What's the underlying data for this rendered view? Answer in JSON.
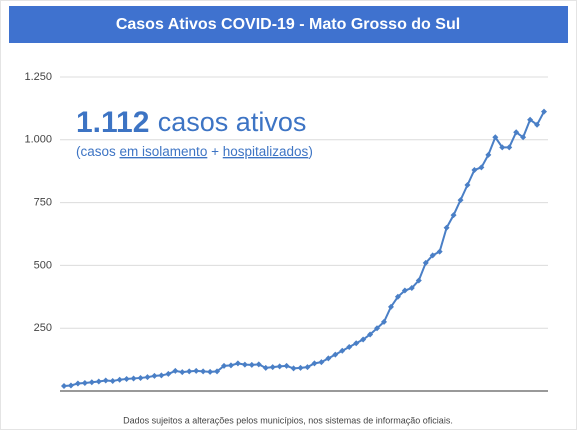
{
  "chart_data": {
    "type": "line",
    "title": "Casos Ativos COVID-19 - Mato Grosso do Sul",
    "annotation": {
      "number": "1.112",
      "text": "casos ativos"
    },
    "subtitle_parts": [
      "(casos",
      "em isolamento",
      "+",
      "hospitalizados",
      ")"
    ],
    "footnote": "Dados sujeitos a alterações pelos municípios, nos sistemas de informação oficiais.",
    "categories": [
      null,
      null,
      null,
      null,
      null,
      null,
      null,
      null,
      null,
      null,
      null,
      null,
      null,
      null,
      null,
      null,
      null,
      null,
      null,
      null,
      null,
      null,
      null,
      null,
      null,
      null,
      null,
      null,
      null,
      null,
      null,
      null,
      null,
      null,
      null,
      null,
      null,
      null,
      null,
      null,
      null,
      null,
      null,
      null,
      null,
      null,
      null,
      null,
      null,
      null,
      null,
      null,
      null,
      null,
      null,
      null,
      null,
      null,
      null,
      null,
      null,
      null,
      null,
      null,
      null,
      null,
      null,
      null,
      null,
      null
    ],
    "series": [
      {
        "name": "Casos ativos",
        "color": "#4a7fc6",
        "values": [
          20,
          22,
          30,
          32,
          35,
          38,
          42,
          40,
          45,
          48,
          50,
          52,
          55,
          60,
          62,
          68,
          80,
          75,
          78,
          80,
          78,
          76,
          78,
          100,
          102,
          110,
          105,
          104,
          106,
          92,
          95,
          98,
          100,
          90,
          92,
          95,
          110,
          115,
          130,
          145,
          160,
          175,
          190,
          205,
          225,
          250,
          275,
          335,
          375,
          400,
          410,
          440,
          510,
          540,
          555,
          650,
          700,
          760,
          820,
          880,
          890,
          940,
          1010,
          970,
          970,
          1030,
          1010,
          1080,
          1060,
          1112
        ]
      }
    ],
    "ylim": [
      0,
      1250
    ],
    "yticks": [
      250,
      500,
      750,
      {
        "value": 1000,
        "label": "1.000"
      },
      {
        "value": 1250,
        "label": "1.250"
      }
    ],
    "grid": true
  }
}
